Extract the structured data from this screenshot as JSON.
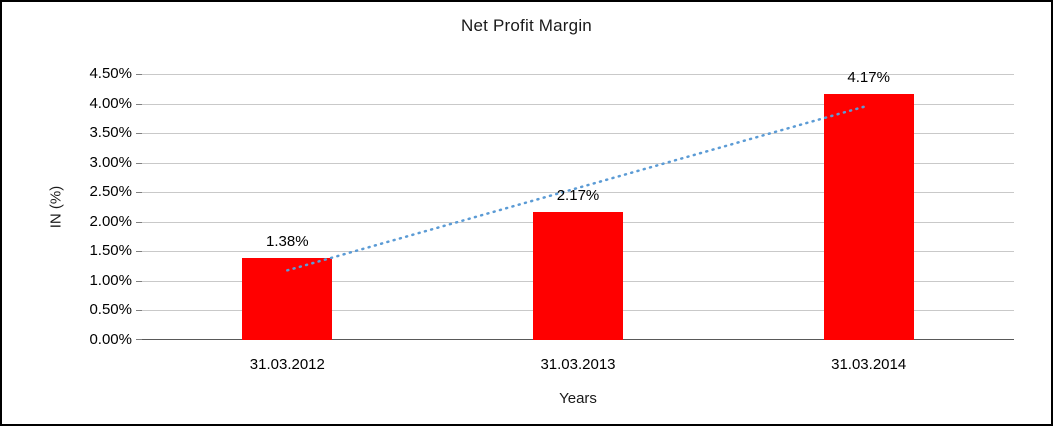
{
  "chart_data": {
    "type": "bar",
    "title": "Net Profit Margin",
    "xlabel": "Years",
    "ylabel": "IN (%)",
    "categories": [
      "31.03.2012",
      "31.03.2013",
      "31.03.2014"
    ],
    "values": [
      1.38,
      2.17,
      4.17
    ],
    "data_labels": [
      "1.38%",
      "2.17%",
      "4.17%"
    ],
    "ylim": [
      0,
      4.5
    ],
    "ytick_step": 0.5,
    "ytick_labels": [
      "0.00%",
      "0.50%",
      "1.00%",
      "1.50%",
      "2.00%",
      "2.50%",
      "3.00%",
      "3.50%",
      "4.00%",
      "4.50%"
    ],
    "grid": true,
    "legend": "none",
    "bar_color": "#FF0000",
    "trendline": {
      "type": "linear",
      "style": "dotted",
      "color": "#5B9BD5"
    }
  }
}
